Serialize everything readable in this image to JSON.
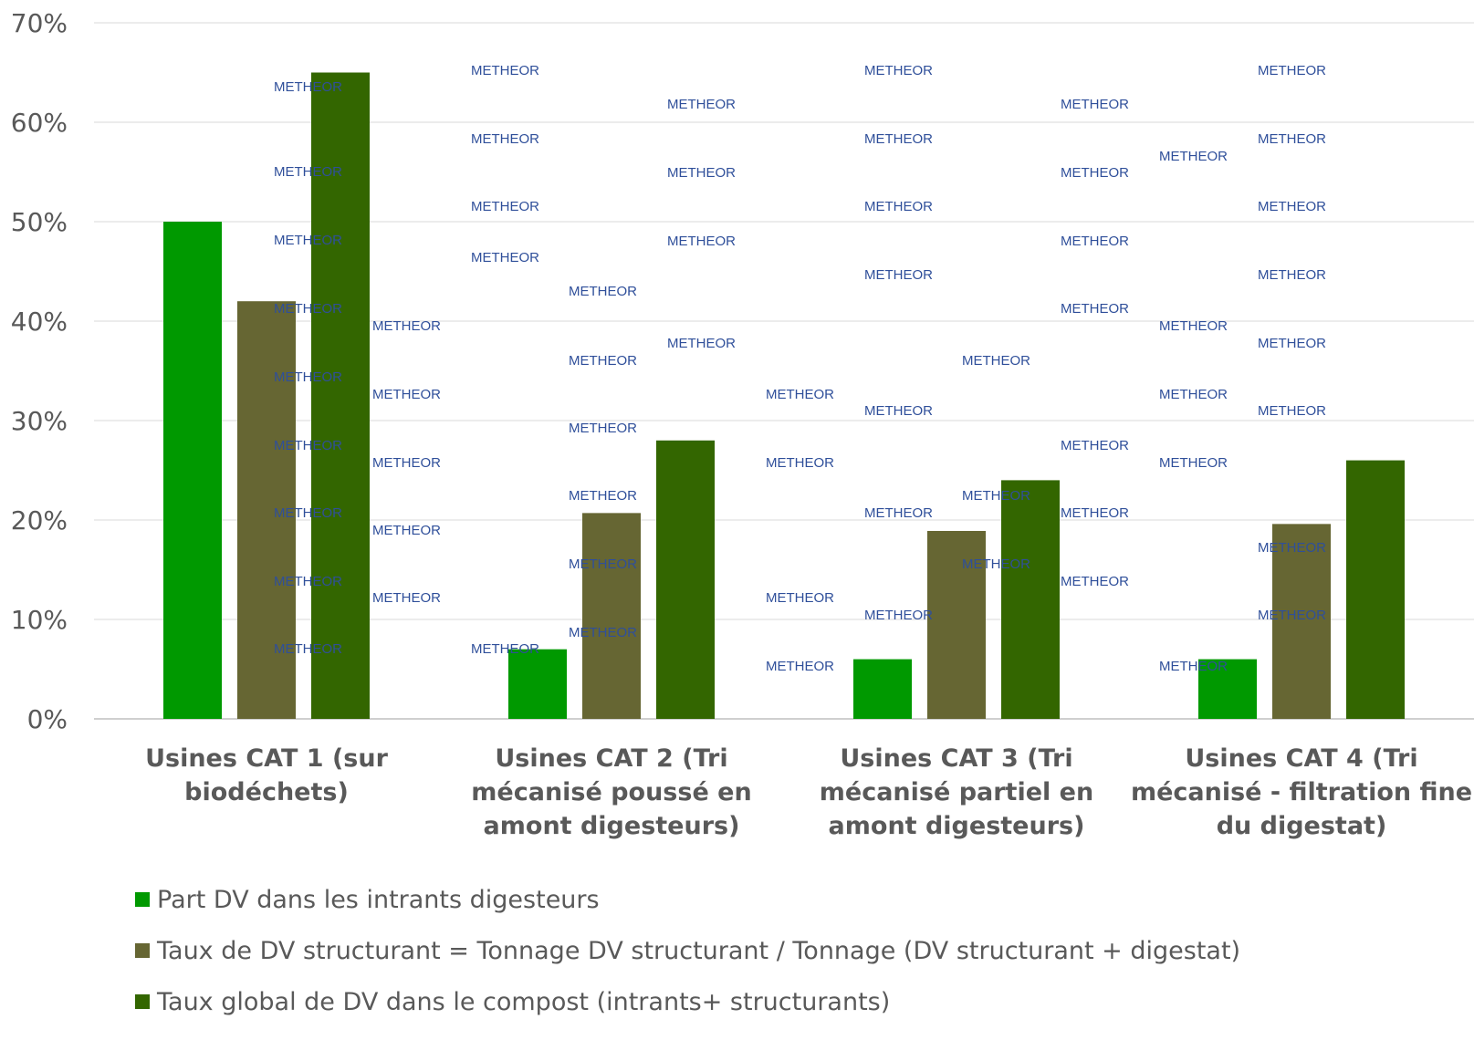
{
  "chart_data": {
    "type": "bar",
    "categories": [
      [
        "Usines CAT 1 (sur",
        "biodéchets)"
      ],
      [
        "Usines CAT 2 (Tri",
        "mécanisé poussé en",
        "amont digesteurs)"
      ],
      [
        "Usines CAT 3 (Tri",
        "mécanisé partiel en",
        "amont digesteurs)"
      ],
      [
        "Usines CAT 4 (Tri",
        "mécanisé - filtration fine",
        "du digestat)"
      ]
    ],
    "series": [
      {
        "name": "Part DV dans les intrants digesteurs",
        "color": "#009900",
        "values": [
          50,
          7,
          6,
          6
        ]
      },
      {
        "name": "Taux de DV structurant = Tonnage DV structurant / Tonnage (DV structurant + digestat)",
        "color": "#666633",
        "values": [
          42,
          20.7,
          18.9,
          19.6
        ]
      },
      {
        "name": "Taux global de DV dans le compost (intrants+ structurants)",
        "color": "#336600",
        "values": [
          65,
          28,
          24,
          26
        ]
      }
    ],
    "yticks": [
      "0%",
      "10%",
      "20%",
      "30%",
      "40%",
      "50%",
      "60%",
      "70%"
    ],
    "ylim": [
      0,
      70
    ],
    "grid": true,
    "legend_position": "bottom",
    "watermark": "METHEOR"
  }
}
